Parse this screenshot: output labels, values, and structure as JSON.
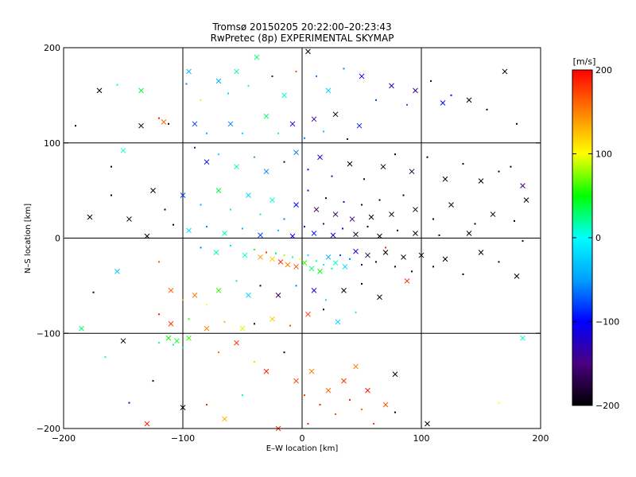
{
  "chart_data": {
    "type": "scatter",
    "title": "Tromsø 20150205 20:22:00–20:23:43",
    "subtitle": "RwPretec (8p) EXPERIMENTAL SKYMAP",
    "xlabel": "E–W location [km]",
    "ylabel": "N–S location [km]",
    "xlim": [
      -200,
      200
    ],
    "ylim": [
      -200,
      200
    ],
    "xticks": [
      -200,
      -100,
      0,
      100,
      200
    ],
    "yticks": [
      -200,
      -100,
      0,
      100,
      200
    ],
    "xtick_labels": [
      "−200",
      "−100",
      "0",
      "100",
      "200"
    ],
    "ytick_labels": [
      "−200",
      "−100",
      "0",
      "100",
      "200"
    ],
    "grid": true,
    "colorbar": {
      "label": "[m/s]",
      "min": -200,
      "max": 200,
      "ticks": [
        200,
        100,
        0,
        -100,
        -200
      ],
      "tick_labels": [
        "200",
        "100",
        "0",
        "−100",
        "−200"
      ],
      "colormap": [
        "#000000",
        "#4a0080",
        "#0000ff",
        "#00a0ff",
        "#00ffff",
        "#00ff00",
        "#ffff00",
        "#ff8000",
        "#ff0000"
      ]
    },
    "points": [
      {
        "x": -170,
        "y": 155,
        "v": -200
      },
      {
        "x": -155,
        "y": 161,
        "v": 10
      },
      {
        "x": -135,
        "y": 155,
        "v": 40
      },
      {
        "x": -120,
        "y": 126,
        "v": 190
      },
      {
        "x": -116,
        "y": 122,
        "v": 160
      },
      {
        "x": -112,
        "y": 120,
        "v": -200
      },
      {
        "x": -150,
        "y": 92,
        "v": 10
      },
      {
        "x": -190,
        "y": 118,
        "v": -200
      },
      {
        "x": -135,
        "y": 118,
        "v": -200
      },
      {
        "x": -97,
        "y": 162,
        "v": -60
      },
      {
        "x": -95,
        "y": 175,
        "v": -40
      },
      {
        "x": -85,
        "y": 145,
        "v": 90
      },
      {
        "x": -70,
        "y": 165,
        "v": -40
      },
      {
        "x": -62,
        "y": 152,
        "v": -20
      },
      {
        "x": -55,
        "y": 175,
        "v": 20
      },
      {
        "x": -45,
        "y": 160,
        "v": 10
      },
      {
        "x": -38,
        "y": 190,
        "v": 30
      },
      {
        "x": -25,
        "y": 170,
        "v": -140
      },
      {
        "x": -15,
        "y": 150,
        "v": 10
      },
      {
        "x": -5,
        "y": 175,
        "v": 170
      },
      {
        "x": 5,
        "y": 196,
        "v": -200
      },
      {
        "x": 12,
        "y": 170,
        "v": -60
      },
      {
        "x": 22,
        "y": 155,
        "v": -20
      },
      {
        "x": 35,
        "y": 178,
        "v": -60
      },
      {
        "x": 50,
        "y": 170,
        "v": -110
      },
      {
        "x": 62,
        "y": 145,
        "v": -80
      },
      {
        "x": 75,
        "y": 160,
        "v": -120
      },
      {
        "x": 88,
        "y": 140,
        "v": -70
      },
      {
        "x": 95,
        "y": 155,
        "v": -140
      },
      {
        "x": 108,
        "y": 165,
        "v": -180
      },
      {
        "x": 118,
        "y": 142,
        "v": -100
      },
      {
        "x": 125,
        "y": 150,
        "v": -120
      },
      {
        "x": 140,
        "y": 145,
        "v": -200
      },
      {
        "x": 155,
        "y": 135,
        "v": -200
      },
      {
        "x": 170,
        "y": 175,
        "v": -200
      },
      {
        "x": 180,
        "y": 120,
        "v": -200
      },
      {
        "x": -90,
        "y": 120,
        "v": -80
      },
      {
        "x": -80,
        "y": 110,
        "v": -40
      },
      {
        "x": -60,
        "y": 120,
        "v": -60
      },
      {
        "x": -50,
        "y": 110,
        "v": -20
      },
      {
        "x": -30,
        "y": 128,
        "v": 30
      },
      {
        "x": -20,
        "y": 110,
        "v": 20
      },
      {
        "x": -8,
        "y": 120,
        "v": -110
      },
      {
        "x": 2,
        "y": 105,
        "v": -60
      },
      {
        "x": 10,
        "y": 125,
        "v": -140
      },
      {
        "x": 18,
        "y": 112,
        "v": -30
      },
      {
        "x": 28,
        "y": 130,
        "v": -200
      },
      {
        "x": 38,
        "y": 104,
        "v": -170
      },
      {
        "x": 48,
        "y": 118,
        "v": -90
      },
      {
        "x": -90,
        "y": 95,
        "v": -140
      },
      {
        "x": -80,
        "y": 80,
        "v": -100
      },
      {
        "x": -70,
        "y": 88,
        "v": -20
      },
      {
        "x": -55,
        "y": 75,
        "v": 20
      },
      {
        "x": -40,
        "y": 85,
        "v": -40
      },
      {
        "x": -30,
        "y": 70,
        "v": -60
      },
      {
        "x": -15,
        "y": 80,
        "v": -180
      },
      {
        "x": -5,
        "y": 90,
        "v": -60
      },
      {
        "x": 5,
        "y": 72,
        "v": -110
      },
      {
        "x": 15,
        "y": 85,
        "v": -120
      },
      {
        "x": 25,
        "y": 65,
        "v": -150
      },
      {
        "x": 40,
        "y": 78,
        "v": -200
      },
      {
        "x": 52,
        "y": 62,
        "v": -180
      },
      {
        "x": 68,
        "y": 75,
        "v": -200
      },
      {
        "x": 78,
        "y": 88,
        "v": -200
      },
      {
        "x": 92,
        "y": 70,
        "v": -180
      },
      {
        "x": 105,
        "y": 85,
        "v": -200
      },
      {
        "x": 120,
        "y": 62,
        "v": -200
      },
      {
        "x": 135,
        "y": 78,
        "v": -200
      },
      {
        "x": 150,
        "y": 60,
        "v": -200
      },
      {
        "x": 165,
        "y": 70,
        "v": -200
      },
      {
        "x": 185,
        "y": 55,
        "v": -150
      },
      {
        "x": -160,
        "y": 75,
        "v": -200
      },
      {
        "x": -125,
        "y": 50,
        "v": -200
      },
      {
        "x": -115,
        "y": 30,
        "v": -200
      },
      {
        "x": -100,
        "y": 45,
        "v": -80
      },
      {
        "x": -85,
        "y": 35,
        "v": -40
      },
      {
        "x": -70,
        "y": 50,
        "v": 40
      },
      {
        "x": -60,
        "y": 30,
        "v": 20
      },
      {
        "x": -45,
        "y": 45,
        "v": -20
      },
      {
        "x": -35,
        "y": 25,
        "v": 30
      },
      {
        "x": -25,
        "y": 40,
        "v": 10
      },
      {
        "x": -15,
        "y": 20,
        "v": -60
      },
      {
        "x": -5,
        "y": 35,
        "v": -100
      },
      {
        "x": 5,
        "y": 50,
        "v": -130
      },
      {
        "x": 12,
        "y": 30,
        "v": -160
      },
      {
        "x": 20,
        "y": 42,
        "v": -200
      },
      {
        "x": 28,
        "y": 25,
        "v": -170
      },
      {
        "x": 35,
        "y": 38,
        "v": -120
      },
      {
        "x": 42,
        "y": 20,
        "v": -140
      },
      {
        "x": 50,
        "y": 35,
        "v": -180
      },
      {
        "x": 58,
        "y": 22,
        "v": -200
      },
      {
        "x": 65,
        "y": 40,
        "v": -200
      },
      {
        "x": 75,
        "y": 25,
        "v": -200
      },
      {
        "x": 85,
        "y": 45,
        "v": -200
      },
      {
        "x": 95,
        "y": 30,
        "v": -190
      },
      {
        "x": 110,
        "y": 20,
        "v": -200
      },
      {
        "x": 125,
        "y": 35,
        "v": -200
      },
      {
        "x": 145,
        "y": 15,
        "v": -200
      },
      {
        "x": 160,
        "y": 25,
        "v": -200
      },
      {
        "x": 178,
        "y": 18,
        "v": -200
      },
      {
        "x": -145,
        "y": 20,
        "v": -200
      },
      {
        "x": -108,
        "y": 14,
        "v": -200
      },
      {
        "x": -95,
        "y": 8,
        "v": -20
      },
      {
        "x": -80,
        "y": 12,
        "v": -60
      },
      {
        "x": -65,
        "y": 5,
        "v": 20
      },
      {
        "x": -50,
        "y": 10,
        "v": -40
      },
      {
        "x": -35,
        "y": 3,
        "v": -80
      },
      {
        "x": -20,
        "y": 8,
        "v": -30
      },
      {
        "x": -8,
        "y": 2,
        "v": -110
      },
      {
        "x": 2,
        "y": 12,
        "v": -130
      },
      {
        "x": 10,
        "y": 5,
        "v": -90
      },
      {
        "x": 18,
        "y": 15,
        "v": -150
      },
      {
        "x": 26,
        "y": 3,
        "v": -120
      },
      {
        "x": 34,
        "y": 10,
        "v": -100
      },
      {
        "x": 45,
        "y": 4,
        "v": -180
      },
      {
        "x": 55,
        "y": 12,
        "v": -200
      },
      {
        "x": 65,
        "y": 2,
        "v": -200
      },
      {
        "x": 80,
        "y": 8,
        "v": -200
      },
      {
        "x": 95,
        "y": 5,
        "v": -200
      },
      {
        "x": 115,
        "y": 3,
        "v": -200
      },
      {
        "x": 140,
        "y": 5,
        "v": -200
      },
      {
        "x": 185,
        "y": -3,
        "v": -200
      },
      {
        "x": -130,
        "y": 2,
        "v": -200
      },
      {
        "x": -85,
        "y": -10,
        "v": -60
      },
      {
        "x": -72,
        "y": -15,
        "v": 20
      },
      {
        "x": -60,
        "y": -8,
        "v": -20
      },
      {
        "x": -48,
        "y": -18,
        "v": 10
      },
      {
        "x": -40,
        "y": -12,
        "v": 60
      },
      {
        "x": -35,
        "y": -20,
        "v": 140
      },
      {
        "x": -30,
        "y": -15,
        "v": 180
      },
      {
        "x": -25,
        "y": -22,
        "v": 120
      },
      {
        "x": -22,
        "y": -16,
        "v": 40
      },
      {
        "x": -18,
        "y": -25,
        "v": 190
      },
      {
        "x": -15,
        "y": -18,
        "v": 80
      },
      {
        "x": -12,
        "y": -28,
        "v": 150
      },
      {
        "x": -8,
        "y": -20,
        "v": 20
      },
      {
        "x": -5,
        "y": -30,
        "v": 170
      },
      {
        "x": -2,
        "y": -22,
        "v": 100
      },
      {
        "x": 2,
        "y": -26,
        "v": 60
      },
      {
        "x": 5,
        "y": -18,
        "v": -20
      },
      {
        "x": 8,
        "y": -32,
        "v": 30
      },
      {
        "x": 12,
        "y": -24,
        "v": 10
      },
      {
        "x": 15,
        "y": -35,
        "v": 50
      },
      {
        "x": 18,
        "y": -28,
        "v": -10
      },
      {
        "x": 22,
        "y": -20,
        "v": -40
      },
      {
        "x": 25,
        "y": -32,
        "v": 20
      },
      {
        "x": 28,
        "y": -26,
        "v": 10
      },
      {
        "x": 32,
        "y": -18,
        "v": -80
      },
      {
        "x": 36,
        "y": -30,
        "v": -20
      },
      {
        "x": 40,
        "y": -22,
        "v": -60
      },
      {
        "x": 45,
        "y": -14,
        "v": -110
      },
      {
        "x": 50,
        "y": -28,
        "v": -130
      },
      {
        "x": 55,
        "y": -18,
        "v": -170
      },
      {
        "x": 62,
        "y": -25,
        "v": -200
      },
      {
        "x": 70,
        "y": -15,
        "v": -200
      },
      {
        "x": 78,
        "y": -30,
        "v": -200
      },
      {
        "x": 85,
        "y": -20,
        "v": -200
      },
      {
        "x": 92,
        "y": -35,
        "v": -200
      },
      {
        "x": 100,
        "y": -18,
        "v": -200
      },
      {
        "x": 110,
        "y": -30,
        "v": -200
      },
      {
        "x": 120,
        "y": -22,
        "v": -200
      },
      {
        "x": 135,
        "y": -38,
        "v": -200
      },
      {
        "x": 150,
        "y": -15,
        "v": -200
      },
      {
        "x": 165,
        "y": -25,
        "v": -200
      },
      {
        "x": 180,
        "y": -40,
        "v": -200
      },
      {
        "x": 70,
        "y": -10,
        "v": 190
      },
      {
        "x": 88,
        "y": -45,
        "v": 180
      },
      {
        "x": -175,
        "y": -57,
        "v": -200
      },
      {
        "x": -155,
        "y": -35,
        "v": -30
      },
      {
        "x": -120,
        "y": -25,
        "v": 170
      },
      {
        "x": -110,
        "y": -55,
        "v": 160
      },
      {
        "x": -100,
        "y": -65,
        "v": 130
      },
      {
        "x": -90,
        "y": -60,
        "v": 150
      },
      {
        "x": -80,
        "y": -70,
        "v": 100
      },
      {
        "x": -70,
        "y": -55,
        "v": 60
      },
      {
        "x": -55,
        "y": -45,
        "v": 30
      },
      {
        "x": -45,
        "y": -60,
        "v": -20
      },
      {
        "x": -35,
        "y": -50,
        "v": -200
      },
      {
        "x": -20,
        "y": -60,
        "v": -160
      },
      {
        "x": -5,
        "y": -50,
        "v": -60
      },
      {
        "x": 10,
        "y": -55,
        "v": -120
      },
      {
        "x": 20,
        "y": -65,
        "v": -20
      },
      {
        "x": 35,
        "y": -55,
        "v": -200
      },
      {
        "x": 50,
        "y": -48,
        "v": -200
      },
      {
        "x": 65,
        "y": -62,
        "v": -200
      },
      {
        "x": -120,
        "y": -80,
        "v": 190
      },
      {
        "x": -110,
        "y": -90,
        "v": 180
      },
      {
        "x": -95,
        "y": -85,
        "v": 60
      },
      {
        "x": -80,
        "y": -95,
        "v": 150
      },
      {
        "x": -65,
        "y": -88,
        "v": 130
      },
      {
        "x": -50,
        "y": -95,
        "v": 90
      },
      {
        "x": -40,
        "y": -90,
        "v": -200
      },
      {
        "x": -25,
        "y": -85,
        "v": 120
      },
      {
        "x": -10,
        "y": -92,
        "v": 170
      },
      {
        "x": 5,
        "y": -80,
        "v": 180
      },
      {
        "x": 18,
        "y": -75,
        "v": -200
      },
      {
        "x": 30,
        "y": -88,
        "v": -20
      },
      {
        "x": 45,
        "y": -78,
        "v": 10
      },
      {
        "x": -185,
        "y": -95,
        "v": 30
      },
      {
        "x": -165,
        "y": -125,
        "v": 10
      },
      {
        "x": -150,
        "y": -108,
        "v": -200
      },
      {
        "x": -120,
        "y": -110,
        "v": 30
      },
      {
        "x": -112,
        "y": -105,
        "v": 50
      },
      {
        "x": -108,
        "y": -112,
        "v": 20
      },
      {
        "x": -105,
        "y": -108,
        "v": 40
      },
      {
        "x": -100,
        "y": -115,
        "v": 30
      },
      {
        "x": -95,
        "y": -105,
        "v": 60
      },
      {
        "x": -70,
        "y": -120,
        "v": 160
      },
      {
        "x": -55,
        "y": -110,
        "v": 180
      },
      {
        "x": -40,
        "y": -130,
        "v": 120
      },
      {
        "x": -30,
        "y": -140,
        "v": 190
      },
      {
        "x": -15,
        "y": -120,
        "v": -200
      },
      {
        "x": -5,
        "y": -150,
        "v": 170
      },
      {
        "x": 2,
        "y": -165,
        "v": 180
      },
      {
        "x": 8,
        "y": -140,
        "v": 150
      },
      {
        "x": 15,
        "y": -175,
        "v": 190
      },
      {
        "x": 22,
        "y": -160,
        "v": 160
      },
      {
        "x": 28,
        "y": -185,
        "v": 170
      },
      {
        "x": 35,
        "y": -150,
        "v": 180
      },
      {
        "x": 40,
        "y": -170,
        "v": 190
      },
      {
        "x": 45,
        "y": -135,
        "v": 150
      },
      {
        "x": 50,
        "y": -180,
        "v": 160
      },
      {
        "x": 55,
        "y": -160,
        "v": 190
      },
      {
        "x": 60,
        "y": -195,
        "v": 180
      },
      {
        "x": 78,
        "y": -143,
        "v": -200
      },
      {
        "x": 78,
        "y": -183,
        "v": -200
      },
      {
        "x": 105,
        "y": -195,
        "v": -200
      },
      {
        "x": -125,
        "y": -150,
        "v": -200
      },
      {
        "x": -130,
        "y": -195,
        "v": 190
      },
      {
        "x": -145,
        "y": -173,
        "v": -120
      },
      {
        "x": -100,
        "y": -178,
        "v": -200
      },
      {
        "x": -80,
        "y": -175,
        "v": 190
      },
      {
        "x": -65,
        "y": -190,
        "v": 130
      },
      {
        "x": -50,
        "y": -165,
        "v": 20
      },
      {
        "x": -20,
        "y": -200,
        "v": 180
      },
      {
        "x": 5,
        "y": -195,
        "v": 190
      },
      {
        "x": 70,
        "y": -175,
        "v": 170
      },
      {
        "x": 165,
        "y": -173,
        "v": 100
      },
      {
        "x": 185,
        "y": -105,
        "v": 10
      },
      {
        "x": -160,
        "y": 45,
        "v": -200
      },
      {
        "x": -178,
        "y": 22,
        "v": -200
      },
      {
        "x": 175,
        "y": 75,
        "v": -200
      },
      {
        "x": 188,
        "y": 40,
        "v": -200
      }
    ]
  }
}
